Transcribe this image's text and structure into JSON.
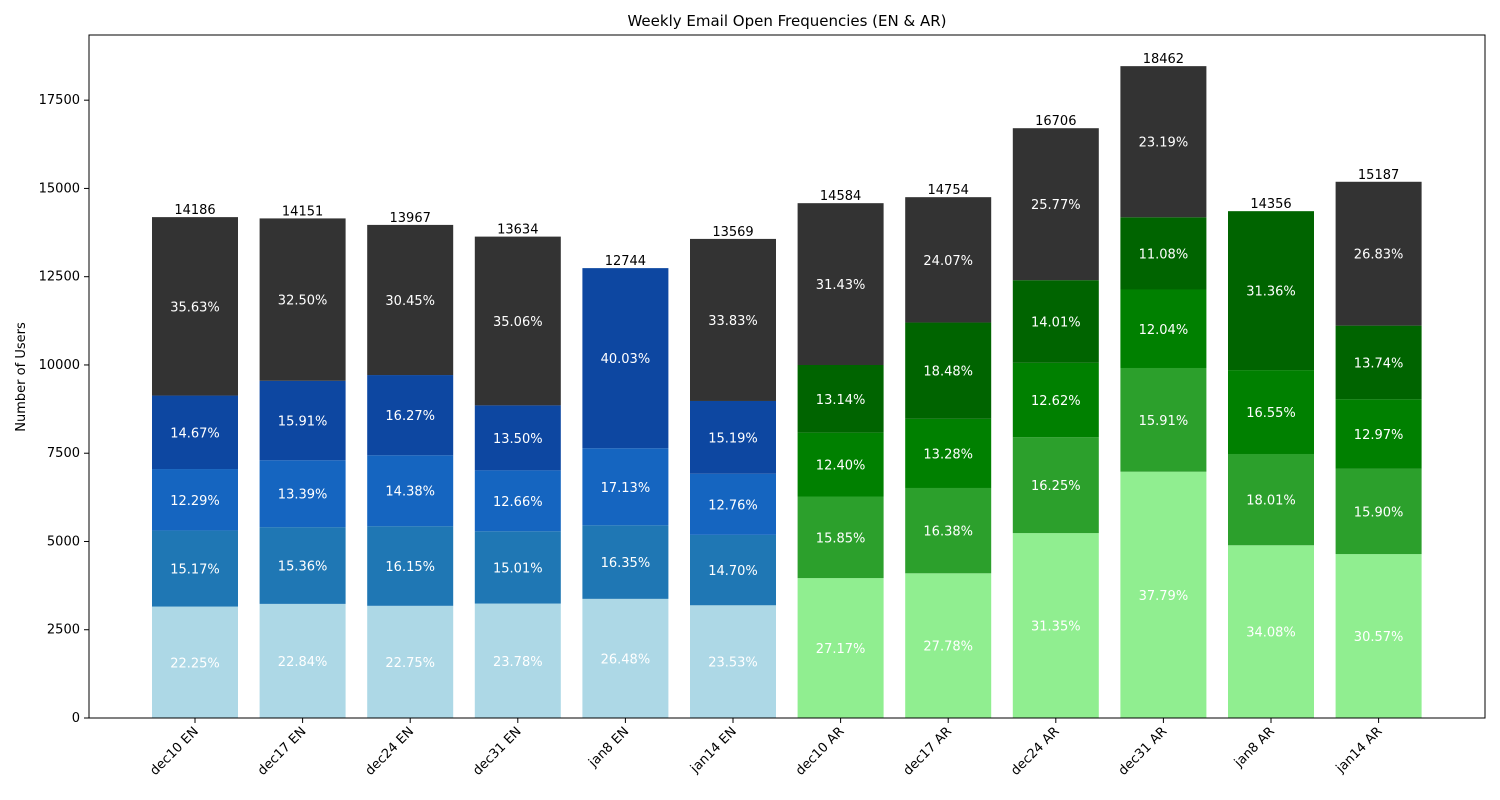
{
  "chart_data": {
    "type": "bar",
    "stacked": true,
    "title": "Weekly Email Open Frequencies (EN & AR)",
    "xlabel": "",
    "ylabel": "Number of Users",
    "ylim": [
      0,
      19346
    ],
    "yticks": [
      0,
      2500,
      5000,
      7500,
      10000,
      12500,
      15000,
      17500
    ],
    "categories": [
      "dec10 EN",
      "dec17 EN",
      "dec24 EN",
      "dec31 EN",
      "jan8 EN",
      "jan14 EN",
      "dec10 AR",
      "dec17 AR",
      "dec24 AR",
      "dec31 AR",
      "jan8 AR",
      "jan14 AR"
    ],
    "totals": [
      14186,
      14151,
      13967,
      13634,
      12744,
      13569,
      14584,
      14754,
      16706,
      18462,
      14356,
      15187
    ],
    "segment_colors": {
      "EN": [
        "#add8e6",
        "#1f77b4",
        "#1565c0",
        "#0d47a1",
        "#333333"
      ],
      "AR": [
        "#90ee90",
        "#2ca02c",
        "#008000",
        "#006400",
        "#333333"
      ]
    },
    "segments": [
      [
        22.25,
        15.17,
        12.29,
        14.67,
        35.63
      ],
      [
        22.84,
        15.36,
        13.39,
        15.91,
        32.5
      ],
      [
        22.75,
        16.15,
        14.38,
        16.27,
        30.45
      ],
      [
        23.78,
        15.01,
        12.66,
        13.5,
        35.06
      ],
      [
        26.48,
        16.35,
        17.13,
        40.03,
        0
      ],
      [
        23.53,
        14.7,
        12.76,
        15.19,
        33.83
      ],
      [
        27.17,
        15.85,
        12.4,
        13.14,
        31.43
      ],
      [
        27.78,
        16.38,
        13.28,
        18.48,
        24.07
      ],
      [
        31.35,
        16.25,
        12.62,
        14.01,
        25.77
      ],
      [
        37.79,
        15.91,
        12.04,
        11.08,
        23.19
      ],
      [
        34.08,
        18.01,
        16.55,
        31.36,
        0
      ],
      [
        30.57,
        15.9,
        12.97,
        13.74,
        26.83
      ]
    ]
  }
}
